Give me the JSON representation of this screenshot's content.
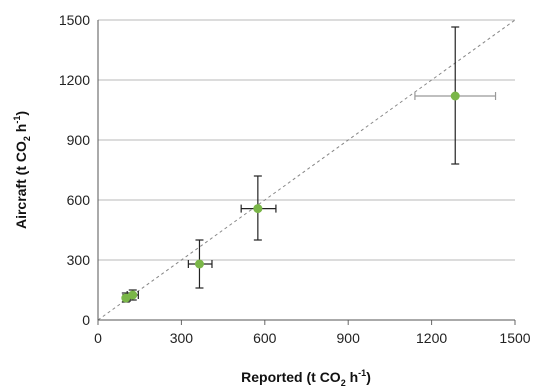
{
  "chart_data": {
    "type": "scatter",
    "title": "",
    "xlabel": {
      "pre": "Reported (t CO",
      "sub": "2",
      "mid": " h",
      "sup": "-1",
      "post": ")"
    },
    "ylabel": {
      "pre": "Aircraft (t CO",
      "sub": "2",
      "mid": " h",
      "sup": "-1",
      "post": ")"
    },
    "xlim": [
      0,
      1500
    ],
    "ylim": [
      0,
      1500
    ],
    "xticks": [
      "0",
      "300",
      "600",
      "900",
      "1200",
      "1500"
    ],
    "yticks": [
      "0",
      "300",
      "600",
      "900",
      "1200",
      "1500"
    ],
    "grid": "horizontal",
    "reference_line": {
      "style": "dashed",
      "from": [
        0,
        0
      ],
      "to": [
        1500,
        1500
      ]
    },
    "colors": {
      "point": "#7ab648",
      "grid": "#b8b8b8",
      "reference": "#888888",
      "error": "#222222",
      "x_error_large": "#999999"
    },
    "series": [
      {
        "points": [
          {
            "x": 100,
            "y": 110,
            "xerr": [
              90,
              115
            ],
            "yerr": [
              90,
              135
            ]
          },
          {
            "x": 125,
            "y": 125,
            "xerr": [
              105,
              145
            ],
            "yerr": [
              100,
              150
            ]
          },
          {
            "x": 365,
            "y": 280,
            "xerr": [
              325,
              410
            ],
            "yerr": [
              160,
              400
            ]
          },
          {
            "x": 575,
            "y": 557,
            "xerr": [
              515,
              640
            ],
            "yerr": [
              400,
              720
            ]
          },
          {
            "x": 1285,
            "y": 1120,
            "xerr": [
              1140,
              1430
            ],
            "yerr": [
              780,
              1465
            ]
          }
        ]
      }
    ]
  }
}
